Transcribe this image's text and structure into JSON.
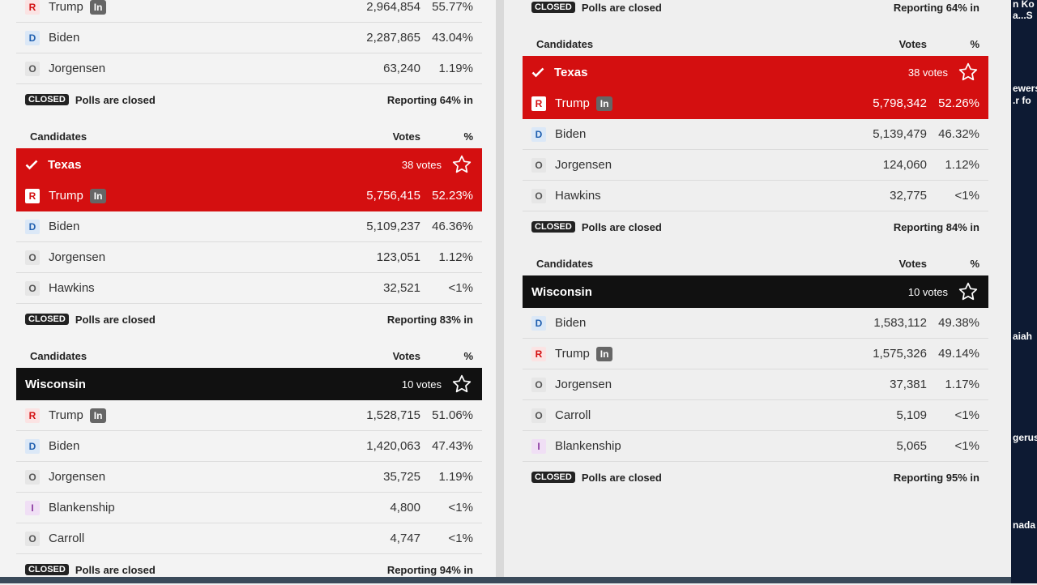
{
  "labels": {
    "candidates": "Candidates",
    "votes": "Votes",
    "pct": "%",
    "closed": "CLOSED",
    "polls": "Polls are closed"
  },
  "panels": [
    {
      "blocks": [
        {
          "rows": [
            {
              "party": "R",
              "name": "Trump",
              "badge": "In",
              "votes": "2,964,854",
              "pct": "55.77%"
            },
            {
              "party": "D",
              "name": "Biden",
              "votes": "2,287,865",
              "pct": "43.04%"
            },
            {
              "party": "O",
              "name": "Jorgensen",
              "votes": "63,240",
              "pct": "1.19%"
            }
          ],
          "reporting": "Reporting 64% in"
        },
        {
          "state": "Texas",
          "electoral": "38 votes",
          "bar_color": "#d40f10",
          "called": true,
          "rows": [
            {
              "party": "R",
              "name": "Trump",
              "badge": "In",
              "votes": "5,756,415",
              "pct": "52.23%",
              "highlight": true
            },
            {
              "party": "D",
              "name": "Biden",
              "votes": "5,109,237",
              "pct": "46.36%"
            },
            {
              "party": "O",
              "name": "Jorgensen",
              "votes": "123,051",
              "pct": "1.12%"
            },
            {
              "party": "O",
              "name": "Hawkins",
              "votes": "32,521",
              "pct": "<1%"
            }
          ],
          "reporting": "Reporting 83% in"
        },
        {
          "state": "Wisconsin",
          "electoral": "10 votes",
          "bar_color": "#111111",
          "called": false,
          "rows": [
            {
              "party": "R",
              "name": "Trump",
              "badge": "In",
              "votes": "1,528,715",
              "pct": "51.06%"
            },
            {
              "party": "D",
              "name": "Biden",
              "votes": "1,420,063",
              "pct": "47.43%"
            },
            {
              "party": "O",
              "name": "Jorgensen",
              "votes": "35,725",
              "pct": "1.19%"
            },
            {
              "party": "I",
              "name": "Blankenship",
              "votes": "4,800",
              "pct": "<1%"
            },
            {
              "party": "O",
              "name": "Carroll",
              "votes": "4,747",
              "pct": "<1%"
            }
          ],
          "reporting": "Reporting 94% in"
        }
      ]
    },
    {
      "blocks": [
        {
          "rows": [],
          "reporting": "Reporting 64% in"
        },
        {
          "state": "Texas",
          "electoral": "38 votes",
          "bar_color": "#d40f10",
          "called": true,
          "rows": [
            {
              "party": "R",
              "name": "Trump",
              "badge": "In",
              "votes": "5,798,342",
              "pct": "52.26%",
              "highlight": true
            },
            {
              "party": "D",
              "name": "Biden",
              "votes": "5,139,479",
              "pct": "46.32%"
            },
            {
              "party": "O",
              "name": "Jorgensen",
              "votes": "124,060",
              "pct": "1.12%"
            },
            {
              "party": "O",
              "name": "Hawkins",
              "votes": "32,775",
              "pct": "<1%"
            }
          ],
          "reporting": "Reporting 84% in"
        },
        {
          "state": "Wisconsin",
          "electoral": "10 votes",
          "bar_color": "#111111",
          "called": false,
          "rows": [
            {
              "party": "D",
              "name": "Biden",
              "votes": "1,583,112",
              "pct": "49.38%"
            },
            {
              "party": "R",
              "name": "Trump",
              "badge": "In",
              "votes": "1,575,326",
              "pct": "49.14%"
            },
            {
              "party": "O",
              "name": "Jorgensen",
              "votes": "37,381",
              "pct": "1.17%"
            },
            {
              "party": "O",
              "name": "Carroll",
              "votes": "5,109",
              "pct": "<1%"
            },
            {
              "party": "I",
              "name": "Blankenship",
              "votes": "5,065",
              "pct": "<1%"
            }
          ],
          "reporting": "Reporting 95% in"
        }
      ]
    }
  ],
  "side_texts": [
    "n Ko",
    "a...S",
    "ewers",
    ".r fo",
    "aiah",
    "gerus",
    "nada"
  ]
}
